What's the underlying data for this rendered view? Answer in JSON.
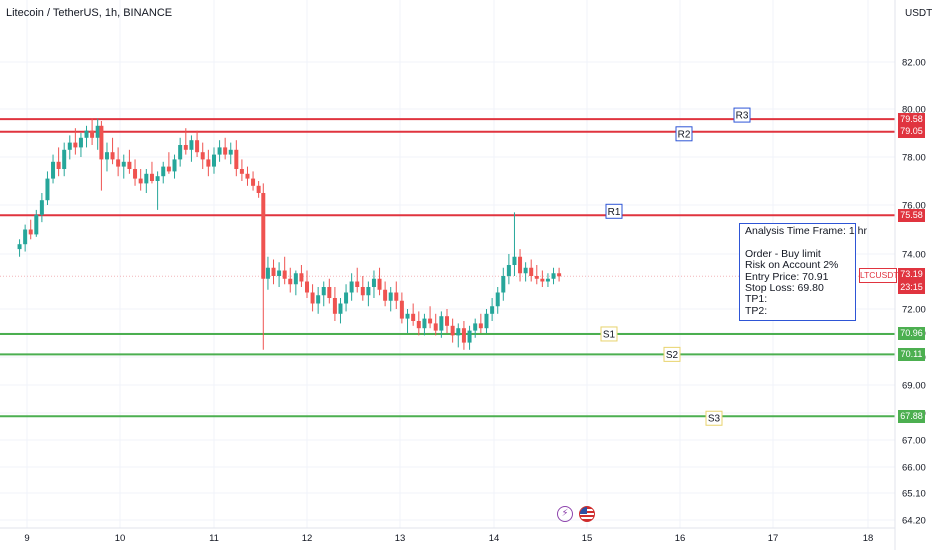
{
  "header": {
    "title": "Litecoin / TetherUS, 1h, BINANCE",
    "currency": "USDT"
  },
  "colors": {
    "resistance": "#e0343f",
    "support": "#4caf50",
    "up": "#26a69a",
    "down": "#ef5350",
    "label_res_border": "#2e55d6",
    "label_sup_border": "#e8d36c"
  },
  "chart_data": {
    "type": "candlestick",
    "y_ticks": [
      64.2,
      65.1,
      66.0,
      67.0,
      68.0,
      69.0,
      70.0,
      71.0,
      72.0,
      74.0,
      76.0,
      78.0,
      80.0,
      82.0
    ],
    "y_tick_labels": [
      "64.20",
      "65.10",
      "66.00",
      "67.00",
      "68.00",
      "69.00",
      "70.00",
      "71.00",
      "72.00",
      "74.00",
      "76.00",
      "78.00",
      "80.00",
      "82.00"
    ],
    "x_ticks": [
      9,
      10,
      11,
      12,
      13,
      14,
      15,
      16,
      17,
      18
    ],
    "x_tick_labels": [
      "9",
      "10",
      "11",
      "12",
      "13",
      "14",
      "15",
      "16",
      "17",
      "18"
    ],
    "levels": [
      {
        "name": "R3",
        "price": 79.58,
        "label": "79.58",
        "kind": "resistance"
      },
      {
        "name": "R2",
        "price": 79.05,
        "label": "79.05",
        "kind": "resistance"
      },
      {
        "name": "R1",
        "price": 75.58,
        "label": "75.58",
        "kind": "resistance"
      },
      {
        "name": "S1",
        "price": 70.96,
        "label": "70.96",
        "kind": "support"
      },
      {
        "name": "S2",
        "price": 70.11,
        "label": "70.11",
        "kind": "support"
      },
      {
        "name": "S3",
        "price": 67.88,
        "label": "67.88",
        "kind": "support"
      }
    ],
    "current_price": {
      "symbol": "LTCUSDT",
      "price": 73.19,
      "label": "73.19",
      "countdown": "23:15"
    },
    "candles": [
      [
        8.92,
        74.2,
        74.6,
        73.9,
        74.4
      ],
      [
        8.98,
        74.4,
        75.2,
        74.1,
        75.0
      ],
      [
        9.04,
        75.0,
        75.4,
        74.6,
        74.8
      ],
      [
        9.1,
        74.8,
        75.8,
        74.7,
        75.6
      ],
      [
        9.16,
        75.6,
        76.5,
        75.3,
        76.2
      ],
      [
        9.22,
        76.2,
        77.4,
        76.0,
        77.1
      ],
      [
        9.28,
        77.1,
        78.1,
        76.9,
        77.8
      ],
      [
        9.34,
        77.8,
        78.4,
        77.2,
        77.5
      ],
      [
        9.4,
        77.5,
        78.6,
        77.2,
        78.3
      ],
      [
        9.46,
        78.3,
        78.9,
        77.9,
        78.6
      ],
      [
        9.52,
        78.6,
        79.2,
        78.1,
        78.4
      ],
      [
        9.58,
        78.4,
        79.0,
        78.0,
        78.8
      ],
      [
        9.64,
        78.8,
        79.3,
        78.4,
        79.1
      ],
      [
        9.7,
        79.1,
        79.6,
        78.5,
        78.8
      ],
      [
        9.76,
        78.8,
        79.6,
        78.3,
        79.3
      ],
      [
        9.8,
        79.3,
        79.5,
        76.6,
        77.9
      ],
      [
        9.86,
        77.9,
        78.6,
        77.4,
        78.2
      ],
      [
        9.92,
        78.2,
        78.8,
        77.7,
        77.9
      ],
      [
        9.98,
        77.9,
        78.4,
        77.2,
        77.6
      ],
      [
        10.04,
        77.6,
        78.1,
        77.1,
        77.8
      ],
      [
        10.1,
        77.8,
        78.3,
        77.3,
        77.5
      ],
      [
        10.16,
        77.5,
        77.9,
        76.8,
        77.1
      ],
      [
        10.22,
        77.1,
        77.5,
        76.6,
        76.9
      ],
      [
        10.28,
        76.9,
        77.5,
        76.5,
        77.3
      ],
      [
        10.34,
        77.3,
        77.8,
        76.9,
        77.0
      ],
      [
        10.4,
        77.0,
        77.4,
        75.8,
        77.2
      ],
      [
        10.46,
        77.2,
        77.8,
        76.9,
        77.6
      ],
      [
        10.52,
        77.6,
        78.2,
        77.3,
        77.4
      ],
      [
        10.58,
        77.4,
        78.1,
        77.1,
        77.9
      ],
      [
        10.64,
        77.9,
        78.8,
        77.6,
        78.5
      ],
      [
        10.7,
        78.5,
        79.2,
        78.1,
        78.3
      ],
      [
        10.76,
        78.3,
        78.9,
        77.8,
        78.7
      ],
      [
        10.82,
        78.7,
        79.1,
        78.0,
        78.2
      ],
      [
        10.88,
        78.2,
        78.6,
        77.5,
        77.9
      ],
      [
        10.94,
        77.9,
        78.3,
        77.2,
        77.6
      ],
      [
        11.0,
        77.6,
        78.4,
        77.3,
        78.1
      ],
      [
        11.06,
        78.1,
        78.7,
        77.8,
        78.4
      ],
      [
        11.12,
        78.4,
        78.8,
        77.9,
        78.1
      ],
      [
        11.18,
        78.1,
        78.6,
        77.7,
        78.3
      ],
      [
        11.24,
        78.3,
        78.7,
        77.2,
        77.5
      ],
      [
        11.3,
        77.5,
        77.9,
        77.0,
        77.3
      ],
      [
        11.36,
        77.3,
        77.6,
        76.8,
        77.1
      ],
      [
        11.42,
        77.1,
        77.4,
        76.6,
        76.8
      ],
      [
        11.48,
        76.8,
        77.0,
        76.3,
        76.5
      ],
      [
        11.53,
        76.5,
        76.9,
        70.3,
        73.1
      ],
      [
        11.58,
        73.1,
        73.9,
        72.7,
        73.5
      ],
      [
        11.64,
        73.5,
        73.8,
        72.9,
        73.2
      ],
      [
        11.7,
        73.2,
        73.7,
        72.8,
        73.4
      ],
      [
        11.76,
        73.4,
        73.9,
        72.9,
        73.1
      ],
      [
        11.82,
        73.1,
        73.5,
        72.6,
        72.9
      ],
      [
        11.88,
        72.9,
        73.4,
        72.5,
        73.3
      ],
      [
        11.94,
        73.3,
        73.6,
        72.8,
        73.0
      ],
      [
        12.0,
        73.0,
        73.4,
        72.4,
        72.6
      ],
      [
        12.06,
        72.6,
        72.9,
        71.9,
        72.2
      ],
      [
        12.12,
        72.2,
        72.8,
        71.8,
        72.5
      ],
      [
        12.18,
        72.5,
        73.0,
        72.1,
        72.8
      ],
      [
        12.24,
        72.8,
        73.1,
        72.2,
        72.4
      ],
      [
        12.3,
        72.4,
        72.8,
        71.5,
        71.8
      ],
      [
        12.36,
        71.8,
        72.4,
        71.4,
        72.2
      ],
      [
        12.42,
        72.2,
        72.9,
        71.9,
        72.6
      ],
      [
        12.48,
        72.6,
        73.3,
        72.3,
        73.0
      ],
      [
        12.54,
        73.0,
        73.5,
        72.6,
        72.8
      ],
      [
        12.6,
        72.8,
        73.2,
        72.3,
        72.5
      ],
      [
        12.66,
        72.5,
        73.0,
        72.1,
        72.8
      ],
      [
        12.72,
        72.8,
        73.4,
        72.4,
        73.1
      ],
      [
        12.78,
        73.1,
        73.5,
        72.5,
        72.7
      ],
      [
        12.84,
        72.7,
        73.0,
        72.1,
        72.3
      ],
      [
        12.9,
        72.3,
        72.8,
        71.9,
        72.6
      ],
      [
        12.96,
        72.6,
        73.0,
        72.0,
        72.3
      ],
      [
        13.02,
        72.3,
        72.6,
        71.4,
        71.6
      ],
      [
        13.08,
        71.6,
        72.0,
        71.0,
        71.8
      ],
      [
        13.14,
        71.8,
        72.2,
        71.3,
        71.5
      ],
      [
        13.2,
        71.5,
        71.9,
        70.9,
        71.2
      ],
      [
        13.26,
        71.2,
        71.8,
        70.9,
        71.6
      ],
      [
        13.32,
        71.6,
        72.1,
        71.2,
        71.4
      ],
      [
        13.38,
        71.4,
        71.8,
        70.9,
        71.1
      ],
      [
        13.44,
        71.1,
        71.9,
        70.8,
        71.7
      ],
      [
        13.5,
        71.7,
        72.0,
        71.0,
        71.3
      ],
      [
        13.56,
        71.3,
        71.6,
        70.6,
        70.9
      ],
      [
        13.62,
        70.9,
        71.4,
        70.4,
        71.2
      ],
      [
        13.68,
        71.2,
        71.5,
        70.3,
        70.6
      ],
      [
        13.74,
        70.6,
        71.3,
        70.3,
        71.1
      ],
      [
        13.8,
        71.1,
        71.6,
        70.8,
        71.4
      ],
      [
        13.86,
        71.4,
        71.8,
        71.0,
        71.2
      ],
      [
        13.92,
        71.2,
        72.0,
        71.0,
        71.8
      ],
      [
        13.98,
        71.8,
        72.4,
        71.5,
        72.1
      ],
      [
        14.04,
        72.1,
        72.8,
        71.8,
        72.6
      ],
      [
        14.1,
        72.6,
        73.5,
        72.3,
        73.2
      ],
      [
        14.16,
        73.2,
        74.0,
        72.9,
        73.6
      ],
      [
        14.22,
        73.6,
        75.7,
        73.2,
        73.9
      ],
      [
        14.28,
        73.9,
        74.2,
        73.0,
        73.3
      ],
      [
        14.34,
        73.3,
        73.7,
        73.0,
        73.5
      ],
      [
        14.4,
        73.5,
        73.8,
        73.0,
        73.2
      ],
      [
        14.46,
        73.2,
        73.6,
        72.9,
        73.1
      ],
      [
        14.52,
        73.1,
        73.4,
        72.8,
        73.0
      ],
      [
        14.58,
        73.0,
        73.3,
        72.8,
        73.1
      ],
      [
        14.64,
        73.1,
        73.5,
        72.9,
        73.3
      ],
      [
        14.7,
        73.3,
        73.5,
        73.0,
        73.19
      ]
    ]
  },
  "analysis": {
    "lines": [
      "Analysis Time Frame: 1 hr",
      "",
      "Order - Buy limit",
      "Risk on Account 2%",
      "Entry Price: 70.91",
      "Stop Loss: 69.80",
      "TP1:",
      "TP2:"
    ]
  },
  "events": [
    {
      "icon": "lightning-icon"
    },
    {
      "icon": "us-flag-icon"
    }
  ]
}
